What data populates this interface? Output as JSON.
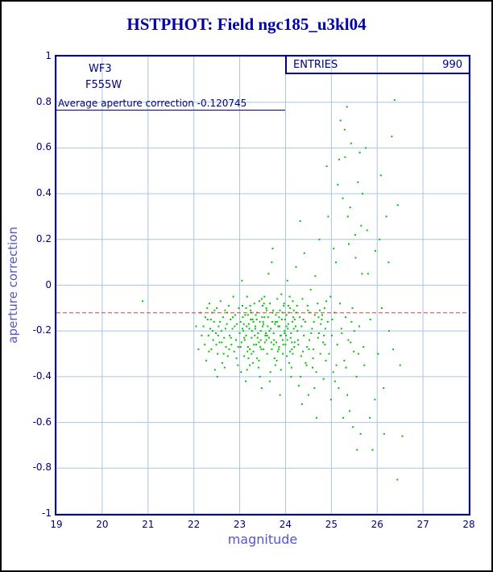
{
  "header": {
    "title": "HSTPHOT: Field ngc185_u3kl04"
  },
  "chart_data": {
    "type": "scatter",
    "title": "HSTPHOT: Field ngc185_u3kl04",
    "xlabel": "magnitude",
    "ylabel": "aperture correction",
    "xlim": [
      19,
      28
    ],
    "ylim": [
      -1,
      1
    ],
    "grid": true,
    "x_ticks": [
      {
        "value": 19,
        "label": "19"
      },
      {
        "value": 20,
        "label": "20"
      },
      {
        "value": 21,
        "label": "21"
      },
      {
        "value": 22,
        "label": "22"
      },
      {
        "value": 23,
        "label": "23"
      },
      {
        "value": 24,
        "label": "24"
      },
      {
        "value": 25,
        "label": "25"
      },
      {
        "value": 26,
        "label": "26"
      },
      {
        "value": 27,
        "label": "27"
      },
      {
        "value": 28,
        "label": "28"
      }
    ],
    "y_ticks": [
      {
        "value": 1,
        "label": "1"
      },
      {
        "value": 0.8,
        "label": "0.8"
      },
      {
        "value": 0.6,
        "label": "0.6"
      },
      {
        "value": 0.4,
        "label": "0.4"
      },
      {
        "value": 0.2,
        "label": "0.2"
      },
      {
        "value": 0,
        "label": "0"
      },
      {
        "value": -0.2,
        "label": "-0.2"
      },
      {
        "value": -0.4,
        "label": "-0.4"
      },
      {
        "value": -0.6,
        "label": "-0.6"
      },
      {
        "value": -0.8,
        "label": "-0.8"
      },
      {
        "value": -1,
        "label": "-1"
      }
    ],
    "annotations": {
      "camera": "WF3",
      "filter": "F555W",
      "entries_label": "ENTRIES",
      "entries_value": "990",
      "average_label": "Average aperture correction -0.120745",
      "average_value": -0.120745
    },
    "colors": {
      "points": "#00c400",
      "average_line": "#d84040",
      "frame": "#000080",
      "grid": "#a6c6e6",
      "title": "#0000aa",
      "axis_label": "#5555cc"
    },
    "points": [
      [
        20.88,
        -0.07
      ],
      [
        22.05,
        -0.18
      ],
      [
        22.1,
        -0.28
      ],
      [
        22.14,
        -0.12
      ],
      [
        22.17,
        -0.22
      ],
      [
        22.21,
        -0.18
      ],
      [
        22.24,
        -0.26
      ],
      [
        22.27,
        -0.33
      ],
      [
        22.3,
        -0.15
      ],
      [
        22.32,
        -0.22
      ],
      [
        22.34,
        -0.08
      ],
      [
        22.36,
        -0.19
      ],
      [
        22.38,
        -0.28
      ],
      [
        22.4,
        -0.12
      ],
      [
        22.42,
        -0.24
      ],
      [
        22.44,
        -0.16
      ],
      [
        22.46,
        -0.37
      ],
      [
        22.48,
        -0.21
      ],
      [
        22.5,
        -0.1
      ],
      [
        22.52,
        -0.3
      ],
      [
        22.54,
        -0.18
      ],
      [
        22.56,
        -0.25
      ],
      [
        22.58,
        -0.07
      ],
      [
        22.6,
        -0.2
      ],
      [
        22.62,
        -0.34
      ],
      [
        22.64,
        -0.14
      ],
      [
        22.66,
        -0.23
      ],
      [
        22.68,
        -0.11
      ],
      [
        22.7,
        -0.27
      ],
      [
        22.72,
        -0.17
      ],
      [
        22.74,
        -0.31
      ],
      [
        22.76,
        -0.09
      ],
      [
        22.78,
        -0.22
      ],
      [
        22.8,
        -0.15
      ],
      [
        22.82,
        -0.26
      ],
      [
        22.84,
        -0.19
      ],
      [
        22.86,
        -0.05
      ],
      [
        22.88,
        -0.29
      ],
      [
        22.9,
        -0.13
      ],
      [
        22.92,
        -0.24
      ],
      [
        22.94,
        -0.17
      ],
      [
        22.96,
        -0.35
      ],
      [
        22.98,
        -0.1
      ],
      [
        23.0,
        -0.21
      ],
      [
        22.25,
        -0.14
      ],
      [
        22.33,
        -0.29
      ],
      [
        22.41,
        -0.2
      ],
      [
        22.49,
        -0.26
      ],
      [
        22.57,
        -0.16
      ],
      [
        22.65,
        -0.3
      ],
      [
        22.73,
        -0.12
      ],
      [
        22.81,
        -0.23
      ],
      [
        22.89,
        -0.18
      ],
      [
        22.97,
        -0.27
      ],
      [
        22.37,
        -0.15
      ],
      [
        22.45,
        -0.11
      ],
      [
        22.53,
        -0.22
      ],
      [
        22.61,
        -0.25
      ],
      [
        22.69,
        -0.19
      ],
      [
        22.77,
        -0.28
      ],
      [
        22.85,
        -0.14
      ],
      [
        22.93,
        -0.32
      ],
      [
        22.29,
        -0.1
      ],
      [
        22.51,
        -0.4
      ],
      [
        22.67,
        -0.36
      ],
      [
        23.02,
        -0.16
      ],
      [
        23.04,
        -0.25
      ],
      [
        23.06,
        -0.09
      ],
      [
        23.08,
        -0.2
      ],
      [
        23.1,
        -0.31
      ],
      [
        23.12,
        -0.13
      ],
      [
        23.14,
        -0.22
      ],
      [
        23.16,
        -0.05
      ],
      [
        23.18,
        -0.27
      ],
      [
        23.2,
        -0.17
      ],
      [
        23.22,
        -0.35
      ],
      [
        23.24,
        -0.11
      ],
      [
        23.26,
        -0.23
      ],
      [
        23.28,
        -0.15
      ],
      [
        23.3,
        -0.29
      ],
      [
        23.32,
        -0.08
      ],
      [
        23.34,
        -0.19
      ],
      [
        23.36,
        -0.26
      ],
      [
        23.38,
        -0.12
      ],
      [
        23.4,
        -0.21
      ],
      [
        23.42,
        -0.33
      ],
      [
        23.44,
        -0.16
      ],
      [
        23.46,
        -0.24
      ],
      [
        23.48,
        -0.06
      ],
      [
        23.5,
        -0.18
      ],
      [
        23.52,
        -0.28
      ],
      [
        23.54,
        -0.14
      ],
      [
        23.56,
        -0.22
      ],
      [
        23.58,
        -0.1
      ],
      [
        23.6,
        -0.3
      ],
      [
        23.03,
        -0.38
      ],
      [
        23.07,
        -0.14
      ],
      [
        23.11,
        -0.24
      ],
      [
        23.15,
        -0.18
      ],
      [
        23.19,
        -0.32
      ],
      [
        23.23,
        -0.09
      ],
      [
        23.27,
        -0.2
      ],
      [
        23.31,
        -0.26
      ],
      [
        23.35,
        -0.13
      ],
      [
        23.39,
        -0.23
      ],
      [
        23.43,
        -0.07
      ],
      [
        23.47,
        -0.28
      ],
      [
        23.51,
        -0.16
      ],
      [
        23.55,
        -0.25
      ],
      [
        23.59,
        -0.11
      ],
      [
        23.05,
        0.02
      ],
      [
        23.13,
        -0.42
      ],
      [
        23.21,
        -0.19
      ],
      [
        23.29,
        -0.34
      ],
      [
        23.37,
        -0.15
      ],
      [
        23.45,
        -0.27
      ],
      [
        23.53,
        -0.08
      ],
      [
        23.57,
        -0.21
      ],
      [
        23.09,
        -0.17
      ],
      [
        23.17,
        -0.29
      ],
      [
        23.25,
        -0.12
      ],
      [
        23.33,
        -0.22
      ],
      [
        23.41,
        -0.36
      ],
      [
        23.49,
        -0.14
      ],
      [
        23.58,
        -0.24
      ],
      [
        23.06,
        -0.19
      ],
      [
        23.14,
        -0.1
      ],
      [
        23.22,
        -0.28
      ],
      [
        23.3,
        -0.16
      ],
      [
        23.38,
        -0.32
      ],
      [
        23.46,
        -0.2
      ],
      [
        23.54,
        -0.05
      ],
      [
        23.1,
        -0.23
      ],
      [
        23.18,
        -0.13
      ],
      [
        23.26,
        -0.3
      ],
      [
        23.34,
        -0.18
      ],
      [
        23.42,
        -0.25
      ],
      [
        23.5,
        -0.09
      ],
      [
        23.02,
        -0.27
      ],
      [
        23.44,
        -0.4
      ],
      [
        23.52,
        -0.17
      ],
      [
        23.6,
        -0.22
      ],
      [
        23.16,
        -0.37
      ],
      [
        23.24,
        -0.15
      ],
      [
        23.48,
        -0.45
      ],
      [
        23.62,
        -0.14
      ],
      [
        23.64,
        -0.23
      ],
      [
        23.66,
        -0.08
      ],
      [
        23.68,
        -0.19
      ],
      [
        23.7,
        -0.28
      ],
      [
        23.72,
        -0.12
      ],
      [
        23.74,
        -0.21
      ],
      [
        23.76,
        -0.32
      ],
      [
        23.78,
        -0.16
      ],
      [
        23.8,
        -0.25
      ],
      [
        23.82,
        -0.06
      ],
      [
        23.84,
        -0.18
      ],
      [
        23.86,
        -0.27
      ],
      [
        23.88,
        -0.11
      ],
      [
        23.9,
        -0.22
      ],
      [
        23.92,
        -0.15
      ],
      [
        23.94,
        -0.3
      ],
      [
        23.96,
        -0.09
      ],
      [
        23.98,
        -0.2
      ],
      [
        24.0,
        -0.26
      ],
      [
        24.02,
        -0.13
      ],
      [
        24.04,
        -0.24
      ],
      [
        24.06,
        -0.17
      ],
      [
        24.08,
        -0.34
      ],
      [
        24.1,
        -0.1
      ],
      [
        24.12,
        -0.21
      ],
      [
        24.14,
        -0.28
      ],
      [
        24.16,
        -0.07
      ],
      [
        24.18,
        -0.19
      ],
      [
        24.2,
        -0.25
      ],
      [
        23.63,
        0.05
      ],
      [
        23.67,
        -0.38
      ],
      [
        23.71,
        -0.16
      ],
      [
        23.75,
        -0.24
      ],
      [
        23.79,
        -0.13
      ],
      [
        23.83,
        -0.29
      ],
      [
        23.87,
        -0.18
      ],
      [
        23.91,
        -0.04
      ],
      [
        23.95,
        -0.26
      ],
      [
        23.99,
        -0.15
      ],
      [
        24.03,
        -0.31
      ],
      [
        24.07,
        -0.12
      ],
      [
        24.11,
        -0.23
      ],
      [
        24.15,
        -0.16
      ],
      [
        24.19,
        -0.27
      ],
      [
        23.65,
        -0.2
      ],
      [
        23.73,
        -0.11
      ],
      [
        23.81,
        -0.33
      ],
      [
        23.89,
        -0.22
      ],
      [
        23.97,
        -0.08
      ],
      [
        24.05,
        -0.19
      ],
      [
        24.13,
        -0.36
      ],
      [
        24.17,
        -0.14
      ],
      [
        23.69,
        -0.25
      ],
      [
        23.77,
        -0.17
      ],
      [
        23.85,
        -0.28
      ],
      [
        23.93,
        -0.12
      ],
      [
        24.01,
        -0.22
      ],
      [
        24.09,
        -0.05
      ],
      [
        24.16,
        -0.3
      ],
      [
        23.61,
        -0.18
      ],
      [
        23.7,
        0.1
      ],
      [
        23.78,
        -0.35
      ],
      [
        23.86,
        -0.14
      ],
      [
        23.94,
        -0.24
      ],
      [
        24.02,
        -0.18
      ],
      [
        24.1,
        -0.29
      ],
      [
        24.18,
        -0.11
      ],
      [
        23.66,
        -0.42
      ],
      [
        23.74,
        -0.26
      ],
      [
        23.82,
        -0.16
      ],
      [
        23.9,
        -0.37
      ],
      [
        23.98,
        -0.21
      ],
      [
        24.06,
        -0.09
      ],
      [
        24.14,
        -0.25
      ],
      [
        23.72,
        0.16
      ],
      [
        23.88,
        -0.48
      ],
      [
        24.04,
        0.02
      ],
      [
        24.12,
        -0.4
      ],
      [
        24.2,
        -0.15
      ],
      [
        24.22,
        -0.18
      ],
      [
        24.25,
        -0.09
      ],
      [
        24.28,
        -0.26
      ],
      [
        24.31,
        -0.14
      ],
      [
        24.34,
        -0.31
      ],
      [
        24.37,
        -0.06
      ],
      [
        24.4,
        -0.22
      ],
      [
        24.43,
        -0.16
      ],
      [
        24.46,
        -0.35
      ],
      [
        24.49,
        -0.11
      ],
      [
        24.52,
        -0.24
      ],
      [
        24.55,
        -0.02
      ],
      [
        24.58,
        -0.19
      ],
      [
        24.61,
        -0.28
      ],
      [
        24.64,
        -0.13
      ],
      [
        24.67,
        -0.38
      ],
      [
        24.7,
        -0.08
      ],
      [
        24.73,
        -0.21
      ],
      [
        24.76,
        -0.3
      ],
      [
        24.79,
        -0.15
      ],
      [
        24.82,
        -0.25
      ],
      [
        24.85,
        -0.1
      ],
      [
        24.88,
        -0.33
      ],
      [
        24.23,
        0.08
      ],
      [
        24.29,
        -0.44
      ],
      [
        24.35,
        -0.18
      ],
      [
        24.41,
        0.14
      ],
      [
        24.47,
        -0.27
      ],
      [
        24.53,
        -0.12
      ],
      [
        24.59,
        -0.36
      ],
      [
        24.65,
        0.04
      ],
      [
        24.71,
        -0.23
      ],
      [
        24.77,
        -0.17
      ],
      [
        24.83,
        -0.41
      ],
      [
        24.89,
        -0.07
      ],
      [
        24.26,
        -0.2
      ],
      [
        24.38,
        -0.29
      ],
      [
        24.5,
        -0.48
      ],
      [
        24.62,
        -0.16
      ],
      [
        24.74,
        0.2
      ],
      [
        24.86,
        -0.26
      ],
      [
        24.24,
        -0.12
      ],
      [
        24.36,
        -0.52
      ],
      [
        24.48,
        -0.09
      ],
      [
        24.6,
        -0.32
      ],
      [
        24.72,
        -0.14
      ],
      [
        24.84,
        -0.22
      ],
      [
        24.9,
        0.52
      ],
      [
        24.27,
        -0.24
      ],
      [
        24.39,
        -0.15
      ],
      [
        24.51,
        -0.28
      ],
      [
        24.63,
        -0.45
      ],
      [
        24.75,
        -0.11
      ],
      [
        24.87,
        -0.19
      ],
      [
        24.32,
        0.28
      ],
      [
        24.44,
        -0.34
      ],
      [
        24.56,
        -0.21
      ],
      [
        24.68,
        -0.58
      ],
      [
        24.8,
        -0.13
      ],
      [
        24.33,
        -0.4
      ],
      [
        24.92,
        -0.16
      ],
      [
        24.95,
        -0.3
      ],
      [
        24.98,
        -0.05
      ],
      [
        25.01,
        -0.22
      ],
      [
        25.04,
        -0.38
      ],
      [
        25.07,
        -0.12
      ],
      [
        25.1,
        0.1
      ],
      [
        25.13,
        -0.26
      ],
      [
        25.16,
        -0.45
      ],
      [
        25.19,
        -0.08
      ],
      [
        25.22,
        -0.19
      ],
      [
        25.25,
        0.38
      ],
      [
        25.28,
        -0.33
      ],
      [
        25.31,
        -0.14
      ],
      [
        25.34,
        0.78
      ],
      [
        25.37,
        -0.24
      ],
      [
        25.4,
        -0.55
      ],
      [
        25.43,
        0.62
      ],
      [
        25.46,
        -0.1
      ],
      [
        25.49,
        -0.29
      ],
      [
        25.52,
        0.22
      ],
      [
        25.55,
        -0.4
      ],
      [
        25.58,
        0.45
      ],
      [
        25.61,
        -0.18
      ],
      [
        25.64,
        -0.65
      ],
      [
        25.67,
        0.05
      ],
      [
        25.7,
        -0.27
      ],
      [
        24.93,
        0.3
      ],
      [
        24.99,
        -0.5
      ],
      [
        25.05,
        0.16
      ],
      [
        25.11,
        -0.35
      ],
      [
        25.17,
        0.55
      ],
      [
        25.23,
        -0.21
      ],
      [
        25.29,
        0.68
      ],
      [
        25.35,
        -0.48
      ],
      [
        25.41,
        0.34
      ],
      [
        25.47,
        -0.62
      ],
      [
        25.53,
        0.12
      ],
      [
        25.59,
        -0.3
      ],
      [
        25.65,
        0.26
      ],
      [
        25.02,
        -0.15
      ],
      [
        25.14,
        0.44
      ],
      [
        25.26,
        -0.58
      ],
      [
        25.38,
        0.18
      ],
      [
        25.5,
        -0.2
      ],
      [
        25.62,
        0.58
      ],
      [
        25.08,
        -0.42
      ],
      [
        25.2,
        0.72
      ],
      [
        25.32,
        -0.36
      ],
      [
        25.44,
        -0.16
      ],
      [
        25.56,
        -0.72
      ],
      [
        25.68,
        0.4
      ],
      [
        25.3,
        0.56
      ],
      [
        25.42,
        -0.25
      ],
      [
        25.36,
        0.3
      ],
      [
        25.72,
        -0.35
      ],
      [
        25.78,
        0.24
      ],
      [
        25.84,
        -0.58
      ],
      [
        25.9,
        -0.72
      ],
      [
        25.96,
        0.15
      ],
      [
        26.02,
        -0.3
      ],
      [
        26.08,
        0.48
      ],
      [
        26.14,
        -0.45
      ],
      [
        26.2,
        0.3
      ],
      [
        26.26,
        -0.2
      ],
      [
        26.32,
        0.65
      ],
      [
        26.38,
        0.81
      ],
      [
        26.44,
        -0.85
      ],
      [
        26.5,
        -0.35
      ],
      [
        25.75,
        0.6
      ],
      [
        25.85,
        -0.15
      ],
      [
        25.95,
        -0.5
      ],
      [
        26.05,
        0.2
      ],
      [
        26.15,
        -0.65
      ],
      [
        26.25,
        0.1
      ],
      [
        26.35,
        -0.28
      ],
      [
        26.45,
        0.35
      ],
      [
        25.8,
        0.05
      ],
      [
        26.1,
        -0.1
      ],
      [
        26.55,
        -0.66
      ]
    ]
  }
}
